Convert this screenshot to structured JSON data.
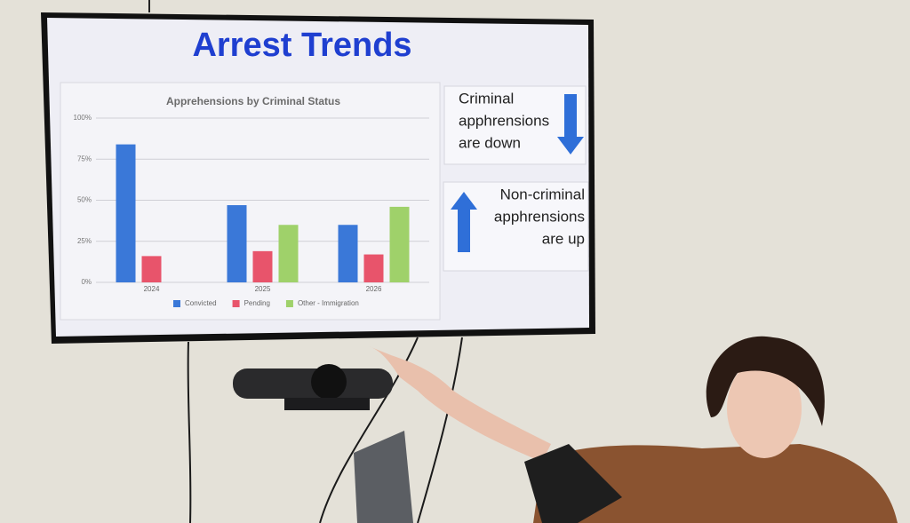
{
  "slide": {
    "title": "Arrest Trends",
    "callouts": [
      {
        "lines": [
          "Criminal",
          "apphrensions",
          "are down"
        ],
        "arrow": "down"
      },
      {
        "lines": [
          "Non-criminal",
          "apphrensions",
          "are up"
        ],
        "arrow": "up"
      }
    ]
  },
  "chart_data": {
    "type": "bar",
    "title": "Apprehensions by Criminal Status",
    "categories": [
      "2024",
      "2025",
      "2026"
    ],
    "series": [
      {
        "name": "Convicted",
        "color": "#3a78d8",
        "values": [
          84,
          47,
          35
        ]
      },
      {
        "name": "Pending",
        "color": "#e8546b",
        "values": [
          16,
          19,
          17
        ]
      },
      {
        "name": "Other - Immigration",
        "color": "#9fd16a",
        "values": [
          null,
          35,
          46
        ]
      }
    ],
    "ylim": [
      0,
      100
    ],
    "yticks": [
      {
        "value": 0,
        "label": "0%"
      },
      {
        "value": 25,
        "label": "25%"
      },
      {
        "value": 50,
        "label": "50%"
      },
      {
        "value": 75,
        "label": "75%"
      },
      {
        "value": 100,
        "label": "100%"
      }
    ],
    "grid": true
  }
}
